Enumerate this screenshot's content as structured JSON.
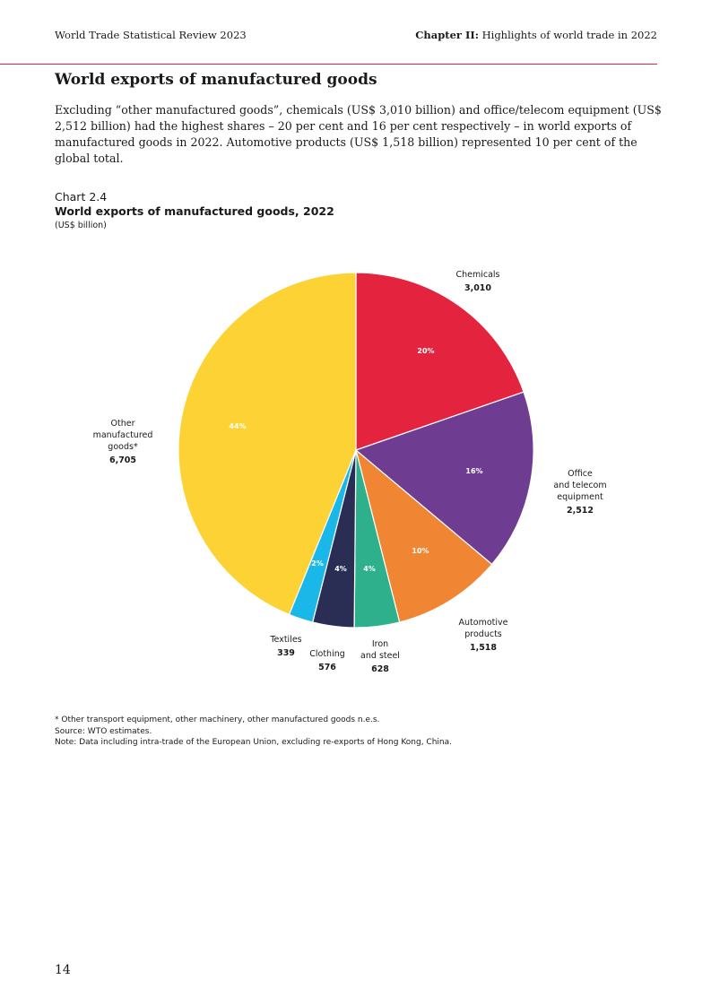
{
  "header": {
    "left": "World Trade Statistical Review 2023",
    "right_bold": "Chapter II:",
    "right_rest": " Highlights of world trade in 2022",
    "rule_color": "#e4243e"
  },
  "section": {
    "title": "World exports of manufactured goods",
    "lead": "Excluding “other manufactured goods”, chemicals (US$ 3,010 billion) and office/telecom equipment (US$ 2,512 billion) had the highest shares – 20 per cent and 16 per cent respectively – in world exports of manufactured goods in 2022. Automotive products (US$ 1,518 billion) represented 10 per cent of the global total."
  },
  "chart_header": {
    "number": "Chart 2.4",
    "title": "World exports of manufactured goods, 2022",
    "unit": "(US$ billion)"
  },
  "chart_data": {
    "type": "pie",
    "title": "World exports of manufactured goods, 2022",
    "unit": "(US$ billion)",
    "start": "12 o'clock, clockwise",
    "slices": [
      {
        "label_lines": [
          "Chemicals"
        ],
        "value": 3010,
        "value_label": "3,010",
        "pct": "20%",
        "color": "#e4243e"
      },
      {
        "label_lines": [
          "Office",
          "and telecom",
          "equipment"
        ],
        "value": 2512,
        "value_label": "2,512",
        "pct": "16%",
        "color": "#6e3d91"
      },
      {
        "label_lines": [
          "Automotive",
          "products"
        ],
        "value": 1518,
        "value_label": "1,518",
        "pct": "10%",
        "color": "#f08634"
      },
      {
        "label_lines": [
          "Iron",
          "and steel"
        ],
        "value": 628,
        "value_label": "628",
        "pct": "4%",
        "color": "#2db08b"
      },
      {
        "label_lines": [
          "Clothing"
        ],
        "value": 576,
        "value_label": "576",
        "pct": "4%",
        "color": "#2a2e55"
      },
      {
        "label_lines": [
          "Textiles"
        ],
        "value": 339,
        "value_label": "339",
        "pct": "2%",
        "color": "#1ab8e8"
      },
      {
        "label_lines": [
          "Other",
          "manufactured",
          "goods*"
        ],
        "value": 6705,
        "value_label": "6,705",
        "pct": "44%",
        "color": "#fdd235"
      }
    ]
  },
  "notes": {
    "footnote": "* Other transport equipment, other machinery, other manufactured goods n.e.s.",
    "source": "Source: WTO estimates.",
    "note": "Note: Data including intra-trade of the European Union, excluding re-exports of Hong Kong, China."
  },
  "page_number": "14"
}
